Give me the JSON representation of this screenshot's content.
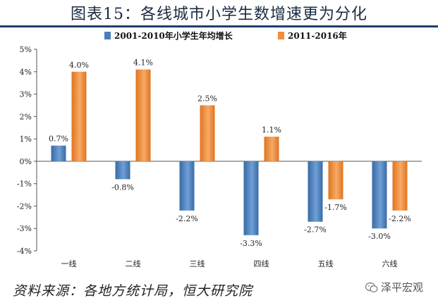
{
  "title": "图表15：各线城市小学生数增速更为分化",
  "source": "资料来源：各地方统计局，恒大研究院",
  "watermark": "泽平宏观",
  "chart_data": {
    "type": "bar",
    "categories": [
      "一线",
      "二线",
      "三线",
      "四线",
      "五线",
      "六线"
    ],
    "series": [
      {
        "name": "2001-2010年小学生年均增长",
        "color": "#4a7ebb",
        "values": [
          0.7,
          -0.8,
          -2.2,
          -3.3,
          -2.7,
          -3.0
        ],
        "labels": [
          "0.7%",
          "-0.8%",
          "-2.2%",
          "-3.3%",
          "-2.7%",
          "-3.0%"
        ]
      },
      {
        "name": "2011-2016年",
        "color": "#f28e3a",
        "values": [
          4.0,
          4.1,
          2.5,
          1.1,
          -1.7,
          -2.2
        ],
        "labels": [
          "4.0%",
          "4.1%",
          "2.5%",
          "1.1%",
          "-1.7%",
          "-2.2%"
        ]
      }
    ],
    "ylim": [
      -4,
      5
    ],
    "yticks": [
      5,
      4,
      3,
      2,
      1,
      0,
      -1,
      -2,
      -3,
      -4
    ],
    "ytick_labels": [
      "5%",
      "4%",
      "3%",
      "2%",
      "1%",
      "0%",
      "-1%",
      "-2%",
      "-3%",
      "-4%"
    ],
    "legend_position": "top",
    "grid": false
  }
}
